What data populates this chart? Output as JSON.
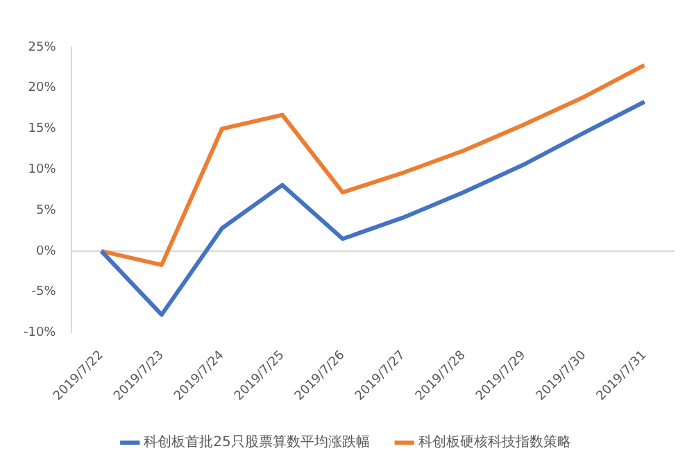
{
  "chart_data": {
    "type": "line",
    "categories": [
      "2019/7/22",
      "2019/7/23",
      "2019/7/24",
      "2019/7/25",
      "2019/7/26",
      "2019/7/27",
      "2019/7/28",
      "2019/7/29",
      "2019/7/30",
      "2019/7/31"
    ],
    "series": [
      {
        "name": "科创板首批25只股票算数平均涨跌幅",
        "color": "#4472c4",
        "values": [
          0,
          -7.8,
          2.8,
          8.1,
          1.5,
          4.1,
          7.2,
          10.6,
          14.5,
          18.3
        ]
      },
      {
        "name": "科创板硬核科技指数策略",
        "color": "#ed7d31",
        "values": [
          0,
          -1.7,
          15.0,
          16.7,
          7.2,
          9.6,
          12.3,
          15.5,
          18.9,
          22.8
        ]
      }
    ],
    "ylim": [
      -10,
      25
    ],
    "yticks": [
      {
        "value": -10,
        "label": "-10%"
      },
      {
        "value": -5,
        "label": "-5%"
      },
      {
        "value": 0,
        "label": "0%"
      },
      {
        "value": 5,
        "label": "5%"
      },
      {
        "value": 10,
        "label": "10%"
      },
      {
        "value": 15,
        "label": "15%"
      },
      {
        "value": 20,
        "label": "20%"
      },
      {
        "value": 25,
        "label": "25%"
      }
    ],
    "ref_lines": [
      {
        "axis": "y",
        "value": 0,
        "color": "#d9d9d9"
      }
    ],
    "grid": false,
    "legend": "bottom",
    "marker": "none",
    "line_style": "solid"
  }
}
